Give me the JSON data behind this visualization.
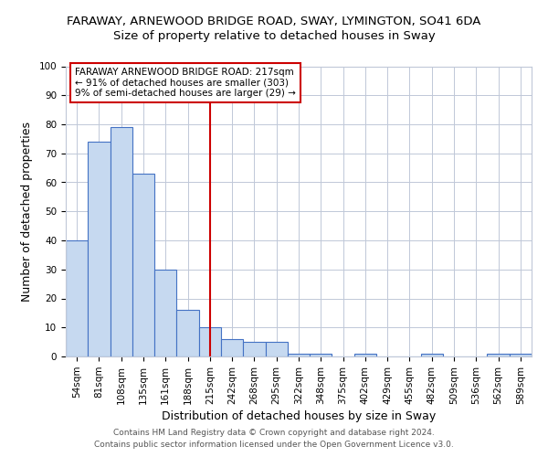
{
  "title": "FARAWAY, ARNEWOOD BRIDGE ROAD, SWAY, LYMINGTON, SO41 6DA",
  "subtitle": "Size of property relative to detached houses in Sway",
  "xlabel": "Distribution of detached houses by size in Sway",
  "ylabel": "Number of detached properties",
  "categories": [
    "54sqm",
    "81sqm",
    "108sqm",
    "135sqm",
    "161sqm",
    "188sqm",
    "215sqm",
    "242sqm",
    "268sqm",
    "295sqm",
    "322sqm",
    "348sqm",
    "375sqm",
    "402sqm",
    "429sqm",
    "455sqm",
    "482sqm",
    "509sqm",
    "536sqm",
    "562sqm",
    "589sqm"
  ],
  "values": [
    40,
    74,
    79,
    63,
    30,
    16,
    10,
    6,
    5,
    5,
    1,
    1,
    0,
    1,
    0,
    0,
    1,
    0,
    0,
    1,
    1
  ],
  "bar_color": "#c6d9f0",
  "bar_edge_color": "#4472c4",
  "red_line_index": 6,
  "ylim": [
    0,
    100
  ],
  "annotation_text": "FARAWAY ARNEWOOD BRIDGE ROAD: 217sqm\n← 91% of detached houses are smaller (303)\n9% of semi-detached houses are larger (29) →",
  "annotation_box_color": "#ffffff",
  "annotation_box_edge_color": "#cc0000",
  "footer_line1": "Contains HM Land Registry data © Crown copyright and database right 2024.",
  "footer_line2": "Contains public sector information licensed under the Open Government Licence v3.0.",
  "title_fontsize": 9.5,
  "subtitle_fontsize": 9.5,
  "tick_fontsize": 7.5,
  "label_fontsize": 9,
  "annotation_fontsize": 7.5,
  "background_color": "#ffffff",
  "grid_color": "#c0c8d8"
}
